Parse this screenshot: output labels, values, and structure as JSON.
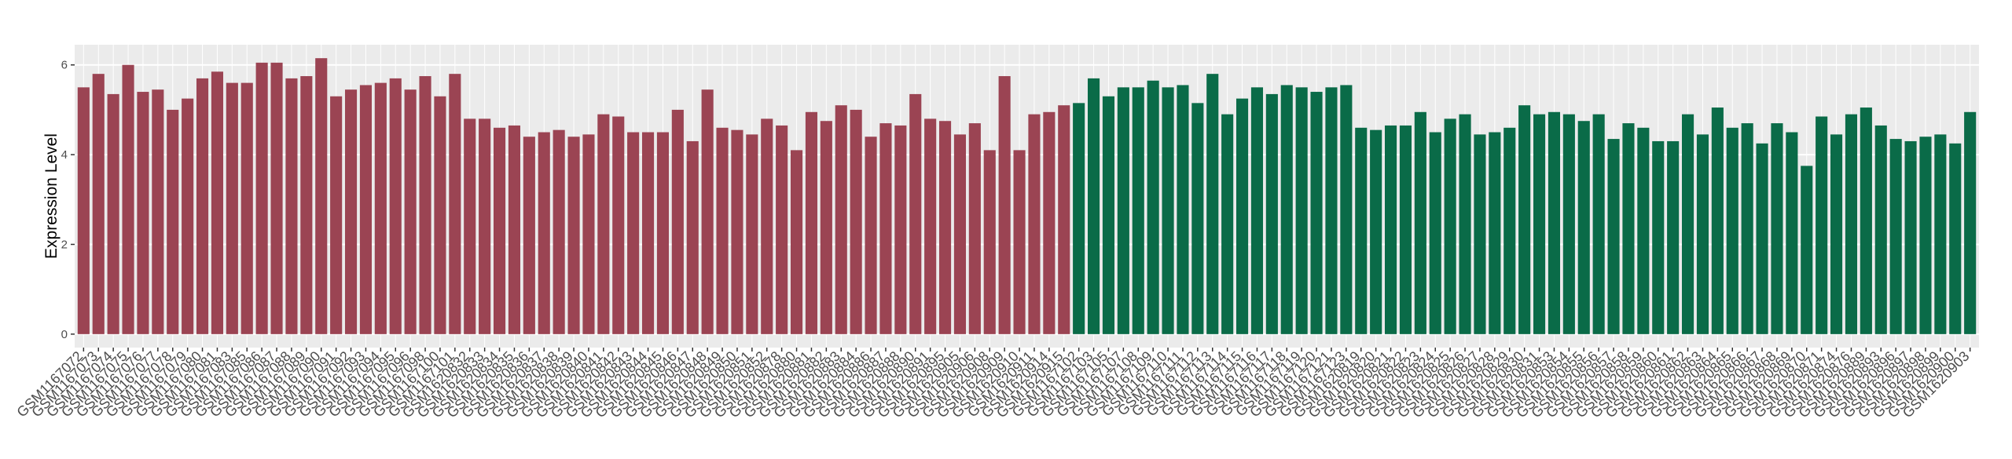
{
  "chart_data": {
    "type": "bar",
    "y_label": "Expression Level",
    "ylim": [
      -0.3,
      6.45
    ],
    "yticks": [
      0,
      2,
      4,
      6
    ],
    "grid": true,
    "segments": [
      {
        "color": "#9b4453",
        "categories": [
          "GSM1167072",
          "GSM1167073",
          "GSM1167074",
          "GSM1167075",
          "GSM1167076",
          "GSM1167077",
          "GSM1167078",
          "GSM1167079",
          "GSM1167080",
          "GSM1167081",
          "GSM1167083",
          "GSM1167085",
          "GSM1167086",
          "GSM1167087",
          "GSM1167088",
          "GSM1167089",
          "GSM1167090",
          "GSM1167091",
          "GSM1167092",
          "GSM1167093",
          "GSM1167094",
          "GSM1167095",
          "GSM1167096",
          "GSM1167098",
          "GSM1167100",
          "GSM1167101",
          "GSM1620832",
          "GSM1620833",
          "GSM1620834",
          "GSM1620835",
          "GSM1620836",
          "GSM1620837",
          "GSM1620838",
          "GSM1620839",
          "GSM1620840",
          "GSM1620841",
          "GSM1620842",
          "GSM1620843",
          "GSM1620844",
          "GSM1620845",
          "GSM1620846",
          "GSM1620847",
          "GSM1620848",
          "GSM1620849",
          "GSM1620850",
          "GSM1620851",
          "GSM1620852",
          "GSM1620878",
          "GSM1620880",
          "GSM1620881",
          "GSM1620882",
          "GSM1620883",
          "GSM1620884",
          "GSM1620886",
          "GSM1620887",
          "GSM1620888",
          "GSM1620890",
          "GSM1620891",
          "GSM1620895",
          "GSM1620905",
          "GSM1620906",
          "GSM1620908",
          "GSM1620909",
          "GSM1620910",
          "GSM1620911",
          "GSM1620914",
          "GSM1620915"
        ],
        "values": [
          5.5,
          5.8,
          5.35,
          6.0,
          5.4,
          5.45,
          5.0,
          5.25,
          5.7,
          5.85,
          5.6,
          5.6,
          6.05,
          6.05,
          5.7,
          5.75,
          6.15,
          5.3,
          5.45,
          5.55,
          5.6,
          5.7,
          5.45,
          5.75,
          5.3,
          5.8,
          4.8,
          4.8,
          4.6,
          4.65,
          4.4,
          4.5,
          4.55,
          4.4,
          4.45,
          4.9,
          4.85,
          4.5,
          4.5,
          4.5,
          5.0,
          4.3,
          5.45,
          4.6,
          4.55,
          4.45,
          4.8,
          4.65,
          4.1,
          4.95,
          4.75,
          5.1,
          5.0,
          4.4,
          4.7,
          4.65,
          5.35,
          4.8,
          4.75,
          4.45,
          4.7,
          4.1,
          5.75,
          4.1,
          4.9,
          4.95,
          5.1
        ]
      },
      {
        "color": "#0a6b48",
        "categories": [
          "GSM1167102",
          "GSM1167103",
          "GSM1167105",
          "GSM1167107",
          "GSM1167108",
          "GSM1167109",
          "GSM1167110",
          "GSM1167111",
          "GSM1167112",
          "GSM1167113",
          "GSM1167114",
          "GSM1167115",
          "GSM1167116",
          "GSM1167117",
          "GSM1167118",
          "GSM1167119",
          "GSM1167120",
          "GSM1167121",
          "GSM1167123",
          "GSM1620819",
          "GSM1620820",
          "GSM1620821",
          "GSM1620822",
          "GSM1620823",
          "GSM1620824",
          "GSM1620825",
          "GSM1620826",
          "GSM1620827",
          "GSM1620828",
          "GSM1620829",
          "GSM1620830",
          "GSM1620831",
          "GSM1620853",
          "GSM1620854",
          "GSM1620855",
          "GSM1620856",
          "GSM1620857",
          "GSM1620858",
          "GSM1620859",
          "GSM1620860",
          "GSM1620861",
          "GSM1620862",
          "GSM1620863",
          "GSM1620864",
          "GSM1620865",
          "GSM1620866",
          "GSM1620867",
          "GSM1620868",
          "GSM1620869",
          "GSM1620870",
          "GSM1620871",
          "GSM1620874",
          "GSM1620876",
          "GSM1620889",
          "GSM1620893",
          "GSM1620896",
          "GSM1620897",
          "GSM1620898",
          "GSM1620899",
          "GSM1620900",
          "GSM1620903"
        ],
        "values": [
          5.15,
          5.7,
          5.3,
          5.5,
          5.5,
          5.65,
          5.5,
          5.55,
          5.15,
          5.8,
          4.9,
          5.25,
          5.5,
          5.35,
          5.55,
          5.5,
          5.4,
          5.5,
          5.55,
          4.6,
          4.55,
          4.65,
          4.65,
          4.95,
          4.5,
          4.8,
          4.9,
          4.45,
          4.5,
          4.6,
          5.1,
          4.9,
          4.95,
          4.9,
          4.75,
          4.9,
          4.35,
          4.7,
          4.6,
          4.3,
          4.3,
          4.9,
          4.45,
          5.05,
          4.6,
          4.7,
          4.25,
          4.7,
          4.5,
          3.75,
          4.85,
          4.45,
          4.9,
          5.05,
          4.65,
          4.35,
          4.3,
          4.4,
          4.45,
          4.25,
          4.95
        ]
      }
    ]
  }
}
